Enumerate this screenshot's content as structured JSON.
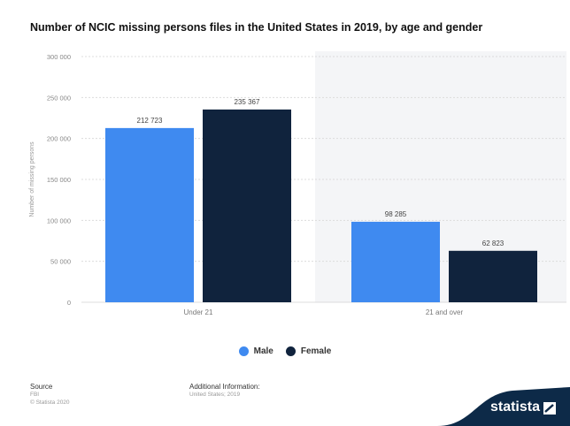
{
  "chart_data": {
    "type": "bar",
    "title": "Number of NCIC missing persons files in the United States in 2019, by age and gender",
    "ylabel": "Number of missing persons",
    "xlabel": "",
    "categories": [
      "Under 21",
      "21 and over"
    ],
    "series": [
      {
        "name": "Male",
        "color": "#3f8af0",
        "values": [
          212723,
          98285
        ],
        "labels": [
          "212 723",
          "98 285"
        ]
      },
      {
        "name": "Female",
        "color": "#10233d",
        "values": [
          235367,
          62823
        ],
        "labels": [
          "235 367",
          "62 823"
        ]
      }
    ],
    "ylim": [
      0,
      300000
    ],
    "yticks": [
      0,
      50000,
      100000,
      150000,
      200000,
      250000,
      300000
    ],
    "ytick_labels": [
      "0",
      "50 000",
      "100 000",
      "150 000",
      "200 000",
      "250 000",
      "300 000"
    ],
    "grid": true,
    "legend_position": "bottom"
  },
  "footer": {
    "source_label": "Source",
    "source_value": "FBI",
    "copyright": "© Statista 2020",
    "additional_label": "Additional Information:",
    "additional_value": "United States; 2019"
  },
  "brand": {
    "name": "statista",
    "bg": "#0d2a48"
  }
}
